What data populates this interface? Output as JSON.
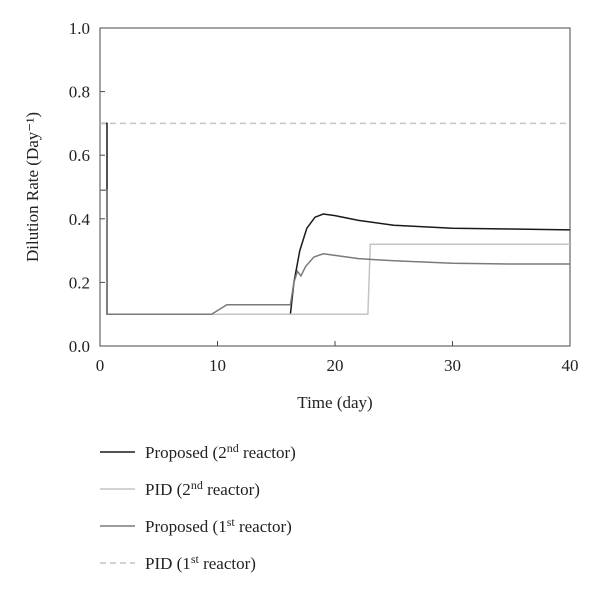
{
  "chart_data": {
    "type": "line",
    "xlabel": "Time (day)",
    "ylabel": "Dilution Rate (Day⁻¹)",
    "xlim": [
      0,
      40
    ],
    "ylim": [
      0,
      1.0
    ],
    "x_ticks": [
      0,
      10,
      20,
      30,
      40
    ],
    "y_ticks": [
      0.0,
      0.2,
      0.4,
      0.6,
      0.8,
      1.0
    ],
    "x_tick_labels": [
      "0",
      "10",
      "20",
      "30",
      "40"
    ],
    "y_tick_labels": [
      "0.0",
      "0.2",
      "0.4",
      "0.6",
      "0.8",
      "1.0"
    ],
    "grid": false,
    "legend_position": "bottom",
    "series": [
      {
        "name": "Proposed (2nd reactor)",
        "name_main": "Proposed (2",
        "name_sup": "nd",
        "name_end": " reactor)",
        "color": "#1a1a1a",
        "dash": "",
        "points": [
          [
            0.0,
            0.7
          ],
          [
            0.6,
            0.7
          ],
          [
            0.6,
            0.1
          ],
          [
            16.2,
            0.1
          ],
          [
            16.5,
            0.2
          ],
          [
            17.0,
            0.3
          ],
          [
            17.6,
            0.37
          ],
          [
            18.3,
            0.405
          ],
          [
            19.0,
            0.415
          ],
          [
            20.0,
            0.41
          ],
          [
            22.0,
            0.395
          ],
          [
            25.0,
            0.38
          ],
          [
            30.0,
            0.37
          ],
          [
            35.0,
            0.368
          ],
          [
            40.0,
            0.365
          ]
        ]
      },
      {
        "name": "PID (2nd reactor)",
        "name_main": "PID (2",
        "name_sup": "nd",
        "name_end": " reactor)",
        "color": "#c4c4c4",
        "dash": "",
        "points": [
          [
            0.8,
            0.1
          ],
          [
            22.8,
            0.1
          ],
          [
            23.0,
            0.32
          ],
          [
            40.0,
            0.32
          ]
        ]
      },
      {
        "name": "Proposed (1st reactor)",
        "name_main": "Proposed (1",
        "name_sup": "st",
        "name_end": " reactor)",
        "color": "#7a7a7a",
        "dash": "",
        "points": [
          [
            0.0,
            0.49
          ],
          [
            0.6,
            0.49
          ],
          [
            0.6,
            0.1
          ],
          [
            9.5,
            0.1
          ],
          [
            10.8,
            0.13
          ],
          [
            16.2,
            0.13
          ],
          [
            16.5,
            0.2
          ],
          [
            16.8,
            0.235
          ],
          [
            17.1,
            0.22
          ],
          [
            17.5,
            0.25
          ],
          [
            18.2,
            0.28
          ],
          [
            19.0,
            0.29
          ],
          [
            20.0,
            0.285
          ],
          [
            22.0,
            0.275
          ],
          [
            25.0,
            0.268
          ],
          [
            30.0,
            0.26
          ],
          [
            35.0,
            0.258
          ],
          [
            40.0,
            0.258
          ]
        ]
      },
      {
        "name": "PID (1st reactor)",
        "name_main": "PID (1",
        "name_sup": "st",
        "name_end": " reactor)",
        "color": "#c4c4c4",
        "dash": "6,4",
        "points": [
          [
            0.0,
            0.7
          ],
          [
            40.0,
            0.7
          ]
        ]
      }
    ]
  }
}
